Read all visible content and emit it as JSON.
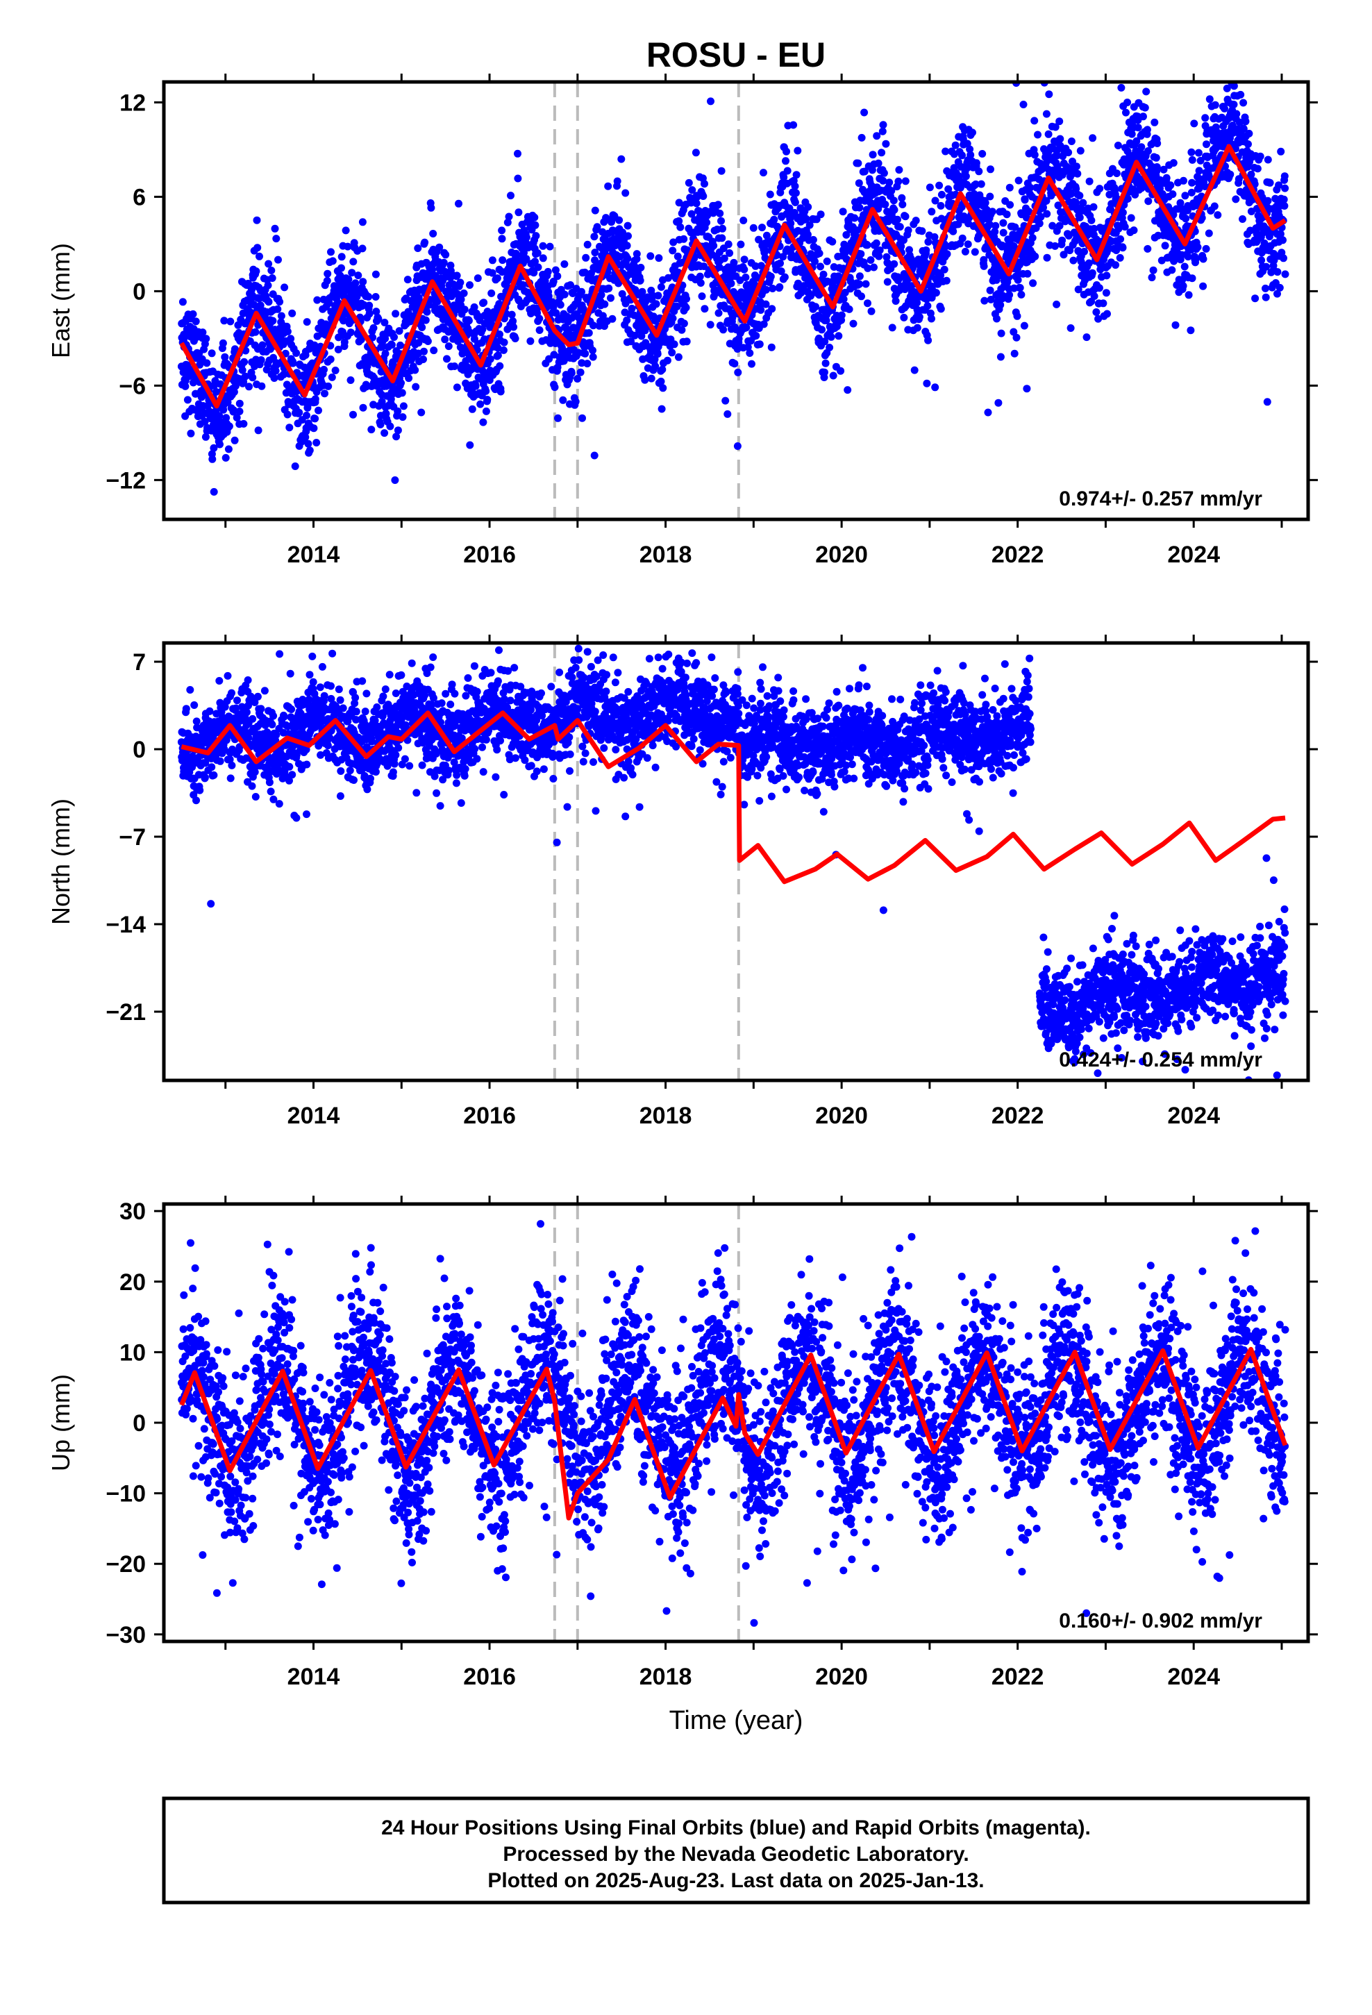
{
  "figure": {
    "title": "ROSU - EU",
    "xlabel": "Time (year)",
    "caption_lines": [
      "24 Hour Positions Using Final Orbits (blue) and Rapid Orbits (magenta).",
      "Processed by the Nevada Geodetic Laboratory.",
      "Plotted on 2025-Aug-23. Last data on 2025-Jan-13."
    ],
    "colors": {
      "data": "#0000ff",
      "model": "#ff0000",
      "event": "#bbbbbb",
      "frame": "#000000"
    }
  },
  "chart_data": [
    {
      "type": "scatter",
      "panel": "east",
      "ylabel": "East (mm)",
      "rate_label": "0.974+/- 0.257 mm/yr",
      "xlim": [
        2012.3,
        2025.3
      ],
      "ylim": [
        -14.5,
        13.3
      ],
      "xticks": [
        2014,
        2016,
        2018,
        2020,
        2022,
        2024
      ],
      "yticks": [
        -12,
        -6,
        0,
        6,
        12
      ],
      "event_lines": [
        2016.74,
        2017.0,
        2018.83
      ],
      "series": [
        {
          "role": "daily-positions",
          "segments": [
            {
              "start": 2012.5,
              "end": 2025.04,
              "offset": -5.0,
              "rate": 0.974,
              "amp": 3.0,
              "phase_peak": 0.38,
              "noise": 1.9
            }
          ]
        },
        {
          "role": "model-fit",
          "points": [
            [
              2012.5,
              -3.3
            ],
            [
              2012.9,
              -7.3
            ],
            [
              2013.35,
              -1.4
            ],
            [
              2013.9,
              -6.6
            ],
            [
              2014.35,
              -0.6
            ],
            [
              2014.9,
              -5.7
            ],
            [
              2015.35,
              0.6
            ],
            [
              2015.9,
              -4.7
            ],
            [
              2016.35,
              1.6
            ],
            [
              2016.74,
              -2.5
            ],
            [
              2016.9,
              -3.4
            ],
            [
              2017.0,
              -3.3
            ],
            [
              2017.35,
              2.2
            ],
            [
              2017.9,
              -2.8
            ],
            [
              2018.35,
              3.2
            ],
            [
              2018.83,
              -1.3
            ],
            [
              2018.9,
              -1.9
            ],
            [
              2019.35,
              4.2
            ],
            [
              2019.9,
              -1.0
            ],
            [
              2020.35,
              5.2
            ],
            [
              2020.9,
              0.0
            ],
            [
              2021.35,
              6.2
            ],
            [
              2021.9,
              1.1
            ],
            [
              2022.35,
              7.2
            ],
            [
              2022.9,
              2.0
            ],
            [
              2023.35,
              8.2
            ],
            [
              2023.9,
              3.0
            ],
            [
              2024.4,
              9.2
            ],
            [
              2024.9,
              4.0
            ],
            [
              2025.04,
              4.5
            ]
          ]
        }
      ]
    },
    {
      "type": "scatter",
      "panel": "north",
      "ylabel": "North (mm)",
      "rate_label": "0.424+/- 0.254 mm/yr",
      "xlim": [
        2012.3,
        2025.3
      ],
      "ylim": [
        -26.5,
        8.5
      ],
      "xticks": [
        2014,
        2016,
        2018,
        2020,
        2022,
        2024
      ],
      "yticks": [
        -21,
        -14,
        -7,
        0,
        7
      ],
      "event_lines": [
        2016.74,
        2017.0,
        2018.83
      ],
      "series": [
        {
          "role": "daily-positions",
          "segments": [
            {
              "start": 2012.5,
              "end": 2018.83,
              "offset": 0.6,
              "rate": 0.424,
              "amp": 1.2,
              "phase_peak": 0.1,
              "noise": 1.6
            },
            {
              "start": 2018.83,
              "end": 2022.15,
              "offset": 0.0,
              "rate": 0.45,
              "amp": 0.9,
              "phase_peak": 0.1,
              "noise": 1.6
            },
            {
              "start": 2022.25,
              "end": 2025.04,
              "offset": -20.5,
              "rate": 0.9,
              "amp": 0.8,
              "phase_peak": 0.1,
              "noise": 1.6
            }
          ]
        },
        {
          "role": "model-fit",
          "points": [
            [
              2012.5,
              0.2
            ],
            [
              2012.8,
              -0.3
            ],
            [
              2013.05,
              1.9
            ],
            [
              2013.35,
              -1.0
            ],
            [
              2013.7,
              0.9
            ],
            [
              2013.95,
              0.3
            ],
            [
              2014.25,
              2.3
            ],
            [
              2014.6,
              -0.6
            ],
            [
              2014.85,
              1.0
            ],
            [
              2015.0,
              0.8
            ],
            [
              2015.3,
              2.9
            ],
            [
              2015.6,
              -0.2
            ],
            [
              2015.9,
              1.5
            ],
            [
              2016.15,
              2.9
            ],
            [
              2016.45,
              0.8
            ],
            [
              2016.74,
              1.9
            ],
            [
              2016.78,
              0.8
            ],
            [
              2017.0,
              2.3
            ],
            [
              2017.35,
              -1.4
            ],
            [
              2017.7,
              0.1
            ],
            [
              2018.0,
              1.9
            ],
            [
              2018.35,
              -1.0
            ],
            [
              2018.6,
              0.4
            ],
            [
              2018.83,
              0.3
            ],
            [
              2018.84,
              -8.9
            ],
            [
              2019.05,
              -7.7
            ],
            [
              2019.35,
              -10.6
            ],
            [
              2019.7,
              -9.6
            ],
            [
              2019.95,
              -8.4
            ],
            [
              2020.3,
              -10.4
            ],
            [
              2020.6,
              -9.3
            ],
            [
              2020.95,
              -7.3
            ],
            [
              2021.3,
              -9.7
            ],
            [
              2021.65,
              -8.6
            ],
            [
              2021.95,
              -6.8
            ],
            [
              2022.3,
              -9.6
            ],
            [
              2022.65,
              -8.0
            ],
            [
              2022.95,
              -6.7
            ],
            [
              2023.3,
              -9.2
            ],
            [
              2023.65,
              -7.6
            ],
            [
              2023.95,
              -5.9
            ],
            [
              2024.25,
              -8.9
            ],
            [
              2024.55,
              -7.4
            ],
            [
              2024.9,
              -5.6
            ],
            [
              2025.04,
              -5.5
            ]
          ]
        }
      ]
    },
    {
      "type": "scatter",
      "panel": "up",
      "ylabel": "Up (mm)",
      "rate_label": "0.160+/- 0.902 mm/yr",
      "xlim": [
        2012.3,
        2025.3
      ],
      "ylim": [
        -31,
        31
      ],
      "xticks": [
        2014,
        2016,
        2018,
        2020,
        2022,
        2024
      ],
      "yticks": [
        -30,
        -20,
        -10,
        0,
        10,
        20,
        30
      ],
      "event_lines": [
        2016.74,
        2017.0,
        2018.83
      ],
      "series": [
        {
          "role": "daily-positions",
          "segments": [
            {
              "start": 2012.5,
              "end": 2025.04,
              "offset": 0.5,
              "rate": 0.16,
              "amp": 7.5,
              "phase_peak": 0.6,
              "noise": 5.5
            }
          ]
        },
        {
          "role": "model-fit",
          "points": [
            [
              2012.5,
              2.5
            ],
            [
              2012.65,
              7.1
            ],
            [
              2013.05,
              -6.8
            ],
            [
              2013.65,
              7.3
            ],
            [
              2014.05,
              -6.5
            ],
            [
              2014.65,
              7.4
            ],
            [
              2015.05,
              -6.3
            ],
            [
              2015.65,
              7.5
            ],
            [
              2016.05,
              -6.0
            ],
            [
              2016.65,
              7.6
            ],
            [
              2016.74,
              3.0
            ],
            [
              2016.9,
              -13.5
            ],
            [
              2017.0,
              -10.0
            ],
            [
              2017.35,
              -5.2
            ],
            [
              2017.65,
              3.3
            ],
            [
              2018.05,
              -10.6
            ],
            [
              2018.65,
              3.5
            ],
            [
              2018.8,
              -0.5
            ],
            [
              2018.83,
              4.0
            ],
            [
              2018.9,
              -1.5
            ],
            [
              2019.05,
              -4.5
            ],
            [
              2019.65,
              9.6
            ],
            [
              2020.05,
              -4.3
            ],
            [
              2020.65,
              9.7
            ],
            [
              2021.05,
              -4.1
            ],
            [
              2021.65,
              9.9
            ],
            [
              2022.05,
              -4.0
            ],
            [
              2022.65,
              10.0
            ],
            [
              2023.05,
              -3.8
            ],
            [
              2023.65,
              10.2
            ],
            [
              2024.05,
              -3.6
            ],
            [
              2024.65,
              10.4
            ],
            [
              2025.04,
              -3.2
            ]
          ]
        }
      ]
    }
  ]
}
